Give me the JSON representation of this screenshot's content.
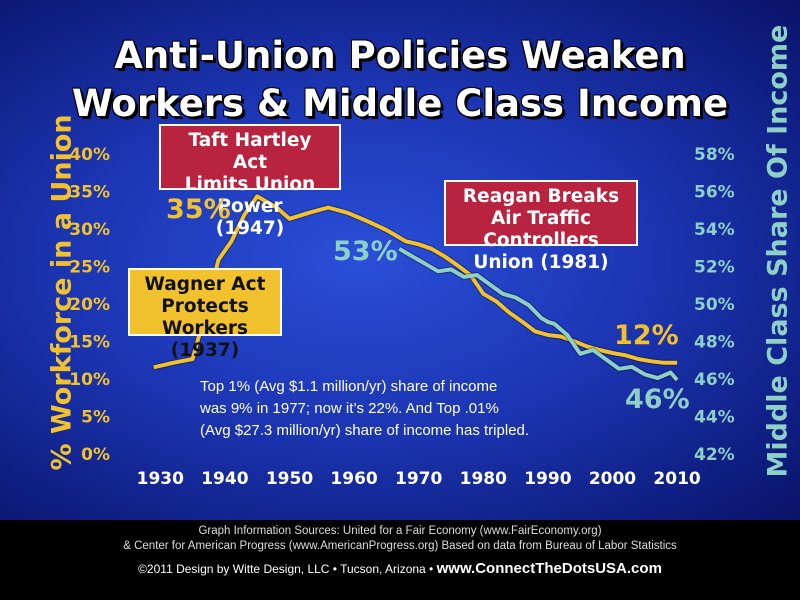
{
  "title": {
    "line1": "Anti-Union Policies Weaken",
    "line2": "Workers & Middle Class Income"
  },
  "colors": {
    "union": "#f2c22e",
    "middle_class": "#8ed0c6",
    "box_red": "#b8233f",
    "box_yellow": "#f2c22e"
  },
  "chart_data": {
    "type": "line",
    "xlabel": "",
    "x_ticks": [
      1930,
      1940,
      1950,
      1960,
      1970,
      1980,
      1990,
      2000,
      2010
    ],
    "xlim": [
      1925,
      2012
    ],
    "left_axis": {
      "label": "% Workforce in a Union",
      "ylim": [
        0,
        40
      ],
      "ticks": [
        "0%",
        "5%",
        "10%",
        "15%",
        "20%",
        "25%",
        "30%",
        "35%",
        "40%"
      ]
    },
    "right_axis": {
      "label": "Middle Class Share Of Income",
      "ylim": [
        42,
        58
      ],
      "ticks": [
        "42%",
        "44%",
        "46%",
        "48%",
        "50%",
        "52%",
        "54%",
        "56%",
        "58%"
      ]
    },
    "series": [
      {
        "name": "",
        "axis": "left",
        "x": [
          1929,
          1932,
          1935,
          1937,
          1939,
          1941,
          1943,
          1945,
          1948,
          1950,
          1953,
          1956,
          1959,
          1962,
          1965,
          1968,
          1970,
          1972,
          1974,
          1976,
          1978,
          1980,
          1982,
          1984,
          1986,
          1988,
          1990,
          1992,
          1994,
          1996,
          1998,
          2000,
          2002,
          2004,
          2006,
          2008,
          2010
        ],
        "values": [
          11.7,
          12.3,
          12.8,
          19.0,
          26.0,
          28.5,
          32.0,
          34.5,
          33.0,
          31.5,
          32.3,
          33.0,
          32.3,
          31.2,
          30.0,
          28.5,
          28.1,
          27.5,
          26.5,
          25.3,
          24.0,
          21.5,
          20.5,
          19.0,
          17.8,
          16.5,
          16.0,
          15.8,
          15.2,
          14.5,
          14.0,
          13.6,
          13.3,
          12.8,
          12.5,
          12.3,
          12.3
        ]
      },
      {
        "name": "",
        "axis": "right",
        "x": [
          1967,
          1969,
          1971,
          1973,
          1975,
          1977,
          1979,
          1981,
          1983,
          1985,
          1987,
          1989,
          1990,
          1991,
          1993,
          1995,
          1997,
          1999,
          2001,
          2003,
          2005,
          2007,
          2009,
          2010
        ],
        "values": [
          53.0,
          52.6,
          52.2,
          51.8,
          51.9,
          51.5,
          51.6,
          51.1,
          50.6,
          50.4,
          50.0,
          49.3,
          49.1,
          49.0,
          48.4,
          47.4,
          47.6,
          47.1,
          46.6,
          46.7,
          46.3,
          46.1,
          46.4,
          46.0
        ]
      }
    ],
    "annotations": {
      "peak_union": "35%",
      "end_union": "12%",
      "start_middle": "53%",
      "end_middle": "46%"
    }
  },
  "events": {
    "taft": {
      "line1": "Taft Hartley Act",
      "line2": "Limits Union Power",
      "line3": "(1947)"
    },
    "reagan": {
      "line1": "Reagan Breaks",
      "line2": "Air Traffic Controllers",
      "line3": "Union (1981)"
    },
    "wagner": {
      "line1": "Wagner Act",
      "line2": "Protects Workers",
      "line3": "(1937)"
    }
  },
  "note": {
    "line1": "Top 1% (Avg $1.1 million/yr) share of income",
    "line2": "was 9% in 1977; now it’s 22%. And Top .01%",
    "line3": "(Avg $27.3 million/yr) share of income has tripled."
  },
  "footer": {
    "sources_line1": "Graph Information Sources: United for a Fair Economy (www.FairEconomy.org)",
    "sources_line2": "& Center for American Progress (www.AmericanProgress.org)  Based on data from Bureau of Labor Statistics",
    "credit": "©2011 Design by Witte Design, LLC • Tucson, Arizona  •",
    "website": "www.ConnectTheDotsUSA.com"
  }
}
